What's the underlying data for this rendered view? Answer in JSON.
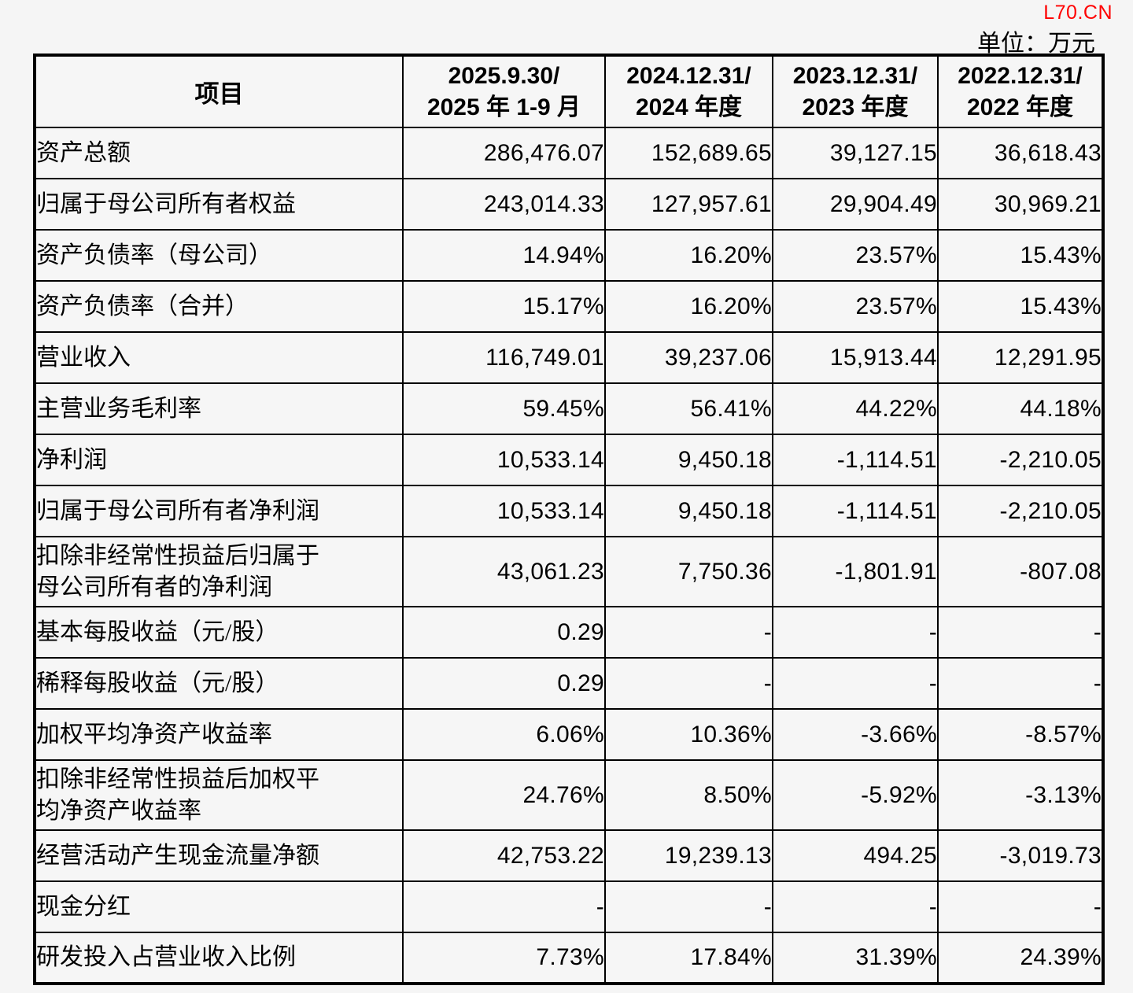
{
  "watermark": "L70.CN",
  "unit_label": "单位：万元",
  "colors": {
    "watermark_red": "#ff0000",
    "text": "#000000",
    "background": "#f6f6f6",
    "border": "#000000"
  },
  "table": {
    "header": {
      "item_col": "项目",
      "period_cols": [
        {
          "line1": "2025.9.30/",
          "line2": "2025 年 1-9 月"
        },
        {
          "line1": "2024.12.31/",
          "line2": "2024 年度"
        },
        {
          "line1": "2023.12.31/",
          "line2": "2023 年度"
        },
        {
          "line1": "2022.12.31/",
          "line2": "2022 年度"
        }
      ]
    },
    "rows": [
      {
        "label": "资产总额",
        "values": [
          "286,476.07",
          "152,689.65",
          "39,127.15",
          "36,618.43"
        ],
        "tall": false
      },
      {
        "label": "归属于母公司所有者权益",
        "values": [
          "243,014.33",
          "127,957.61",
          "29,904.49",
          "30,969.21"
        ],
        "tall": false
      },
      {
        "label": "资产负债率（母公司）",
        "values": [
          "14.94%",
          "16.20%",
          "23.57%",
          "15.43%"
        ],
        "tall": false
      },
      {
        "label": "资产负债率（合并）",
        "values": [
          "15.17%",
          "16.20%",
          "23.57%",
          "15.43%"
        ],
        "tall": false
      },
      {
        "label": "营业收入",
        "values": [
          "116,749.01",
          "39,237.06",
          "15,913.44",
          "12,291.95"
        ],
        "tall": false
      },
      {
        "label": "主营业务毛利率",
        "values": [
          "59.45%",
          "56.41%",
          "44.22%",
          "44.18%"
        ],
        "tall": false
      },
      {
        "label": "净利润",
        "values": [
          "10,533.14",
          "9,450.18",
          "-1,114.51",
          "-2,210.05"
        ],
        "tall": false
      },
      {
        "label": "归属于母公司所有者净利润",
        "values": [
          "10,533.14",
          "9,450.18",
          "-1,114.51",
          "-2,210.05"
        ],
        "tall": false
      },
      {
        "label": "扣除非经常性损益后归属于\n母公司所有者的净利润",
        "values": [
          "43,061.23",
          "7,750.36",
          "-1,801.91",
          "-807.08"
        ],
        "tall": true
      },
      {
        "label": "基本每股收益（元/股）",
        "values": [
          "0.29",
          "-",
          "-",
          "-"
        ],
        "tall": false
      },
      {
        "label": "稀释每股收益（元/股）",
        "values": [
          "0.29",
          "-",
          "-",
          "-"
        ],
        "tall": false
      },
      {
        "label": "加权平均净资产收益率",
        "values": [
          "6.06%",
          "10.36%",
          "-3.66%",
          "-8.57%"
        ],
        "tall": false
      },
      {
        "label": "扣除非经常性损益后加权平\n均净资产收益率",
        "values": [
          "24.76%",
          "8.50%",
          "-5.92%",
          "-3.13%"
        ],
        "tall": true
      },
      {
        "label": "经营活动产生现金流量净额",
        "values": [
          "42,753.22",
          "19,239.13",
          "494.25",
          "-3,019.73"
        ],
        "tall": false
      },
      {
        "label": "现金分红",
        "values": [
          "-",
          "-",
          "-",
          "-"
        ],
        "tall": false
      },
      {
        "label": "研发投入占营业收入比例",
        "values": [
          "7.73%",
          "17.84%",
          "31.39%",
          "24.39%"
        ],
        "tall": false
      }
    ]
  }
}
